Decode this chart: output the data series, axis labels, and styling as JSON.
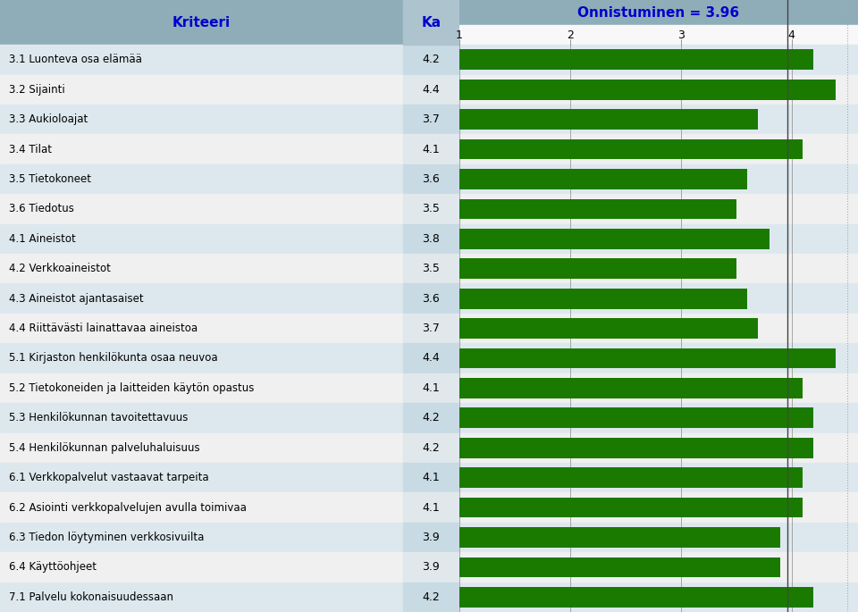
{
  "categories": [
    "3.1 Luonteva osa elämää",
    "3.2 Sijainti",
    "3.3 Aukioloajat",
    "3.4 Tilat",
    "3.5 Tietokoneet",
    "3.6 Tiedotus",
    "4.1 Aineistot",
    "4.2 Verkkoaineistot",
    "4.3 Aineistot ajantasaiset",
    "4.4 Riittävästi lainattavaa aineistoa",
    "5.1 Kirjaston henkilökunta osaa neuvoa",
    "5.2 Tietokoneiden ja laitteiden käytön opastus",
    "5.3 Henkilökunnan tavoitettavuus",
    "5.4 Henkilökunnan palveluhaluisuus",
    "6.1 Verkkopalvelut vastaavat tarpeita",
    "6.2 Asiointi verkkopalvelujen avulla toimivaa",
    "6.3 Tiedon löytyminen verkkosivuilta",
    "6.4 Käyttöohjeet",
    "7.1 Palvelu kokonaisuudessaan"
  ],
  "values": [
    4.2,
    4.4,
    3.7,
    4.1,
    3.6,
    3.5,
    3.8,
    3.5,
    3.6,
    3.7,
    4.4,
    4.1,
    4.2,
    4.2,
    4.1,
    4.1,
    3.9,
    3.9,
    4.2
  ],
  "ka_values": [
    "4.2",
    "4.4",
    "3.7",
    "4.1",
    "3.6",
    "3.5",
    "3.8",
    "3.5",
    "3.6",
    "3.7",
    "4.4",
    "4.1",
    "4.2",
    "4.2",
    "4.1",
    "4.1",
    "3.9",
    "3.9",
    "4.2"
  ],
  "bar_color": "#1a7a00",
  "header_bg_color": "#8fadb8",
  "ka_col_bg": "#adc4cf",
  "row_colors_odd": "#dde8ee",
  "row_colors_even": "#f0f0f0",
  "ka_odd": "#c8dae3",
  "ka_even": "#e0e8ec",
  "title": "Onnistuminen = 3.96",
  "title_color": "#0000cc",
  "kriteeri_label": "Kriteeri",
  "ka_label": "Ka",
  "x_ticks": [
    1,
    2,
    3,
    4
  ],
  "xlim_left": 1.0,
  "xlim_right": 4.6,
  "ref_line_x": 3.96,
  "ref_line_color": "#444444",
  "dotted_line_x": 4.5,
  "tick_row_bg": "#ffffff",
  "tick_bar_row_bg": "#f8f8f8"
}
